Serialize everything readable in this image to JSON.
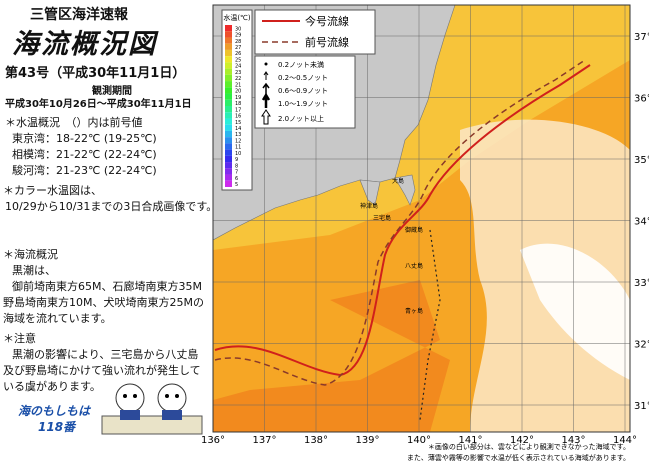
{
  "header": {
    "office": "三管区海洋速報",
    "title": "海流概況図",
    "issue": "第43号（平成30年11月1日）",
    "period_label": "観測期間",
    "period": "平成30年10月26日～平成30年11月1日"
  },
  "temperature": {
    "heading": "＊水温概況　（）内は前号値",
    "rows": [
      "東京湾：18-22℃ (19-25℃)",
      "相模湾：21-22℃ (22-24℃)",
      "駿河湾：21-23℃ (22-24℃)"
    ],
    "note": [
      "＊カラー水温図は、",
      "10/29から10/31までの3日合成画像です。"
    ]
  },
  "current": {
    "heading": "＊海流概況",
    "lines": [
      "黒潮は、",
      "御前埼南東方65M、石廊埼南東方35M",
      "野島埼南東方10M、犬吠埼南東方25Mの",
      "海域を流れています。"
    ]
  },
  "caution": {
    "heading": "＊注意",
    "lines": [
      "黒潮の影響により、三宅島から八丈島",
      "及び野島埼にかけて強い流れが発生して",
      "いる虞があります。"
    ]
  },
  "slogan": {
    "line1": "海のもしもは",
    "line2": "118番"
  },
  "map": {
    "lon_labels": [
      "136°",
      "137°",
      "138°",
      "139°",
      "140°",
      "141°",
      "142°",
      "143°",
      "144°"
    ],
    "lat_labels": [
      "37°",
      "36°",
      "35°",
      "34°",
      "33°",
      "32°",
      "31°"
    ],
    "colorbar": {
      "title": "水温(℃)",
      "labels": [
        "30",
        "29",
        "28",
        "27",
        "26",
        "25",
        "24",
        "23",
        "22",
        "21",
        "20",
        "19",
        "18",
        "17",
        "16",
        "15",
        "14",
        "13",
        "12",
        "11",
        "10",
        "9",
        "8",
        "7",
        "6",
        "5"
      ]
    },
    "lines_legend": [
      "今号流線",
      "前号流線"
    ],
    "speed_legend": [
      "0.2ノット未満",
      "0.2～0.5ノット",
      "0.6～0.9ノット",
      "1.0～1.9ノット",
      "2.0ノット以上"
    ],
    "places": [
      "大島",
      "神津島",
      "三宅島",
      "御蔵島",
      "八丈島",
      "青ヶ島"
    ],
    "footnote": [
      "＊画像の白い部分は、雲などにより観測できなかった海域です。",
      "また、薄雲や霧等の影響で水温が低く表示されている海域があります。"
    ]
  }
}
